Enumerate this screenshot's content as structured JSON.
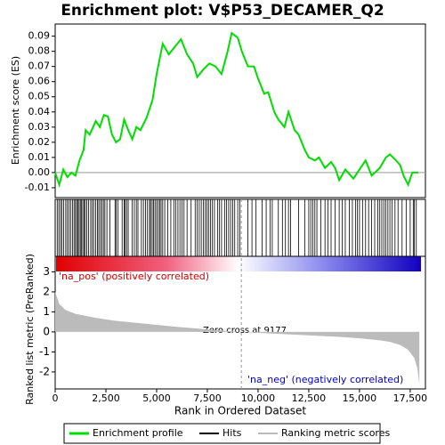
{
  "chart_data": {
    "type": "gsea",
    "title": "Enrichment plot: V$P53_DECAMER_Q2",
    "xlabel": "Rank in Ordered Dataset",
    "es_ylabel": "Enrichment score (ES)",
    "metric_ylabel": "Ranked list metric (PreRanked)",
    "xlim": [
      0,
      18250
    ],
    "xticks": [
      0,
      {
        "value": 2500,
        "label": "2,500"
      },
      {
        "value": 5000,
        "label": "5,000"
      },
      {
        "value": 7500,
        "label": "7,500"
      },
      {
        "value": 10000,
        "label": "10,000"
      },
      {
        "value": 12500,
        "label": "12,500"
      },
      {
        "value": 15000,
        "label": "15,000"
      },
      {
        "value": 17500,
        "label": "17,500"
      }
    ],
    "es_ylim": [
      -0.0165,
      0.098
    ],
    "es_yticks": [
      {
        "value": -0.01,
        "label": "-0.01"
      },
      {
        "value": 0,
        "label": "0.00"
      },
      {
        "value": 0.01,
        "label": "0.01"
      },
      {
        "value": 0.02,
        "label": "0.02"
      },
      {
        "value": 0.03,
        "label": "0.03"
      },
      {
        "value": 0.04,
        "label": "0.04"
      },
      {
        "value": 0.05,
        "label": "0.05"
      },
      {
        "value": 0.06,
        "label": "0.06"
      },
      {
        "value": 0.07,
        "label": "0.07"
      },
      {
        "value": 0.08,
        "label": "0.08"
      },
      {
        "value": 0.09,
        "label": "0.09"
      }
    ],
    "metric_ylim": [
      -2.85,
      3.02
    ],
    "metric_yticks": [
      -2,
      -1,
      0,
      1,
      2,
      3
    ],
    "enrichment": {
      "name": "Enrichment profile",
      "color": "#00dd00",
      "x": [
        0,
        200,
        400,
        600,
        800,
        1000,
        1200,
        1400,
        1500,
        1700,
        2000,
        2200,
        2400,
        2600,
        2800,
        3000,
        3200,
        3400,
        3600,
        3800,
        4000,
        4200,
        4500,
        4800,
        5000,
        5300,
        5600,
        5900,
        6200,
        6500,
        6800,
        7000,
        7300,
        7600,
        7900,
        8200,
        8500,
        8700,
        9000,
        9200,
        9500,
        9800,
        10000,
        10300,
        10500,
        10800,
        11000,
        11300,
        11500,
        11800,
        12000,
        12300,
        12500,
        12800,
        13000,
        13300,
        13600,
        13800,
        14000,
        14300,
        14700,
        15000,
        15300,
        15600,
        16000,
        16300,
        16500,
        16800,
        17000,
        17200,
        17400,
        17600,
        17900
      ],
      "values": [
        0,
        -0.008,
        0.002,
        -0.003,
        0.0,
        -0.002,
        0.008,
        0.015,
        0.028,
        0.025,
        0.034,
        0.03,
        0.038,
        0.037,
        0.025,
        0.02,
        0.022,
        0.035,
        0.028,
        0.022,
        0.03,
        0.028,
        0.036,
        0.048,
        0.065,
        0.085,
        0.078,
        0.083,
        0.088,
        0.078,
        0.072,
        0.063,
        0.068,
        0.072,
        0.07,
        0.065,
        0.08,
        0.092,
        0.089,
        0.08,
        0.07,
        0.07,
        0.062,
        0.052,
        0.053,
        0.04,
        0.035,
        0.03,
        0.04,
        0.028,
        0.025,
        0.015,
        0.01,
        0.008,
        0.01,
        0.003,
        0.007,
        0.003,
        -0.005,
        0.002,
        -0.004,
        0.002,
        0.008,
        -0.002,
        0.003,
        0.01,
        0.012,
        0.008,
        0.005,
        -0.003,
        -0.008,
        0.0,
        0.0
      ]
    },
    "hits": {
      "name": "Hits",
      "color": "#000000",
      "x": [
        100,
        180,
        260,
        330,
        420,
        520,
        600,
        680,
        760,
        850,
        930,
        1000,
        1060,
        1120,
        1180,
        1240,
        1300,
        1360,
        1420,
        1480,
        1560,
        1650,
        1750,
        1830,
        1900,
        2000,
        2080,
        2150,
        2230,
        2300,
        2380,
        2450,
        2550,
        2700,
        2950,
        3000,
        3100,
        3300,
        3400,
        3450,
        3520,
        3600,
        3800,
        3900,
        4000,
        4080,
        4250,
        4350,
        4450,
        4550,
        4650,
        4700,
        4780,
        4850,
        4920,
        5000,
        5080,
        5150,
        5220,
        5300,
        5400,
        5550,
        5700,
        5850,
        5950,
        6050,
        6150,
        6250,
        6350,
        6500,
        6700,
        6900,
        7000,
        7100,
        7200,
        7300,
        7400,
        7480,
        7560,
        7650,
        7750,
        7850,
        8000,
        8100,
        8200,
        8350,
        8450,
        8550,
        8650,
        8750,
        8850,
        9000,
        9100,
        9500,
        9700,
        9900,
        10200,
        10400,
        10600,
        10700,
        11000,
        11200,
        11350,
        11500,
        11600,
        12000,
        12300,
        12500,
        12600,
        12700,
        12800,
        12900,
        13100,
        13300,
        13450,
        13600,
        13800,
        14000,
        14150,
        14300,
        14500,
        14650,
        14800,
        14900,
        15000,
        15150,
        15300,
        15450,
        15600,
        15750,
        15900,
        16000,
        16100,
        16200,
        16300,
        16400,
        16500,
        16600,
        16750,
        16900,
        17100,
        17300,
        17500,
        17650,
        17700,
        17800
      ]
    },
    "metric": {
      "name": "Ranking metric scores",
      "color": "#bbbbbb",
      "x": [
        0,
        200,
        500,
        1000,
        2000,
        3000,
        4000,
        5000,
        6000,
        7000,
        8000,
        9177,
        10000,
        11000,
        12000,
        13000,
        14000,
        15000,
        16000,
        16500,
        17000,
        17400,
        17700,
        17850,
        17950
      ],
      "values": [
        2.0,
        1.4,
        1.1,
        0.9,
        0.7,
        0.55,
        0.45,
        0.35,
        0.25,
        0.17,
        0.08,
        0,
        -0.05,
        -0.1,
        -0.15,
        -0.2,
        -0.25,
        -0.32,
        -0.42,
        -0.5,
        -0.65,
        -0.9,
        -1.3,
        -1.8,
        -2.6
      ]
    },
    "annotations": [
      "'na_pos' (positively correlated)",
      "Zero cross at 9177",
      "'na_neg' (negatively correlated)"
    ]
  }
}
